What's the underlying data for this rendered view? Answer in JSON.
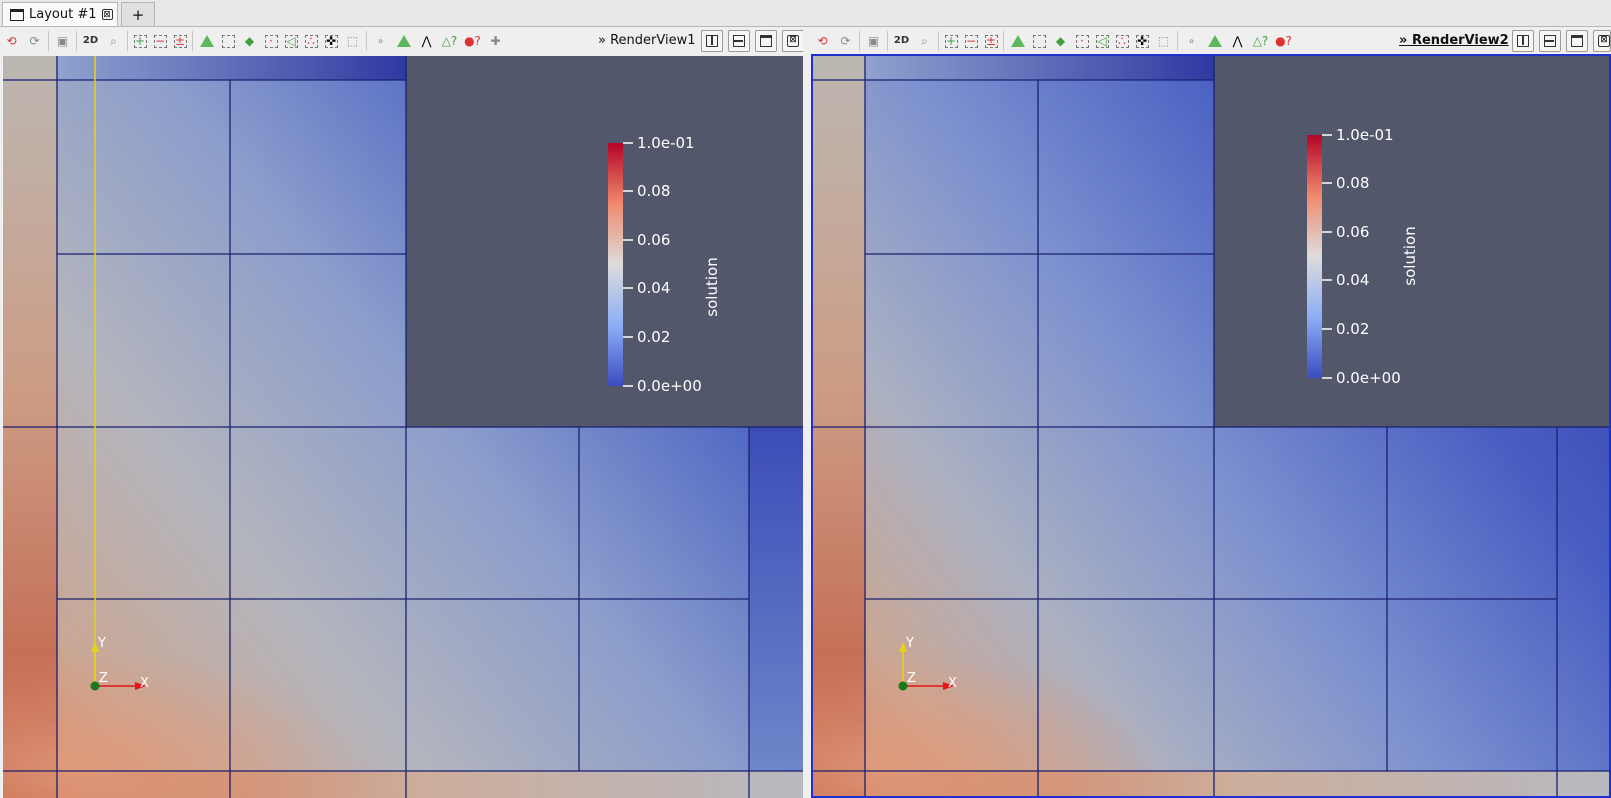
{
  "layout_tabs": {
    "active_label": "Layout #1",
    "close_glyph": "⊠",
    "add_label": "+"
  },
  "toolbar": {
    "twod_label": "2D",
    "more_glyph": "»",
    "icons": [
      "reset-camera-icon",
      "zoom-closest-icon",
      "capture-screenshot-icon",
      "toggle-2d-label",
      "zoom-to-box-icon",
      "select-cells-on-icon",
      "select-points-on-icon",
      "select-cells-frustum-icon",
      "select-points-frustum-icon",
      "select-cells-polygon-icon",
      "select-points-polygon-icon",
      "select-block-icon",
      "interactive-select-cells-icon",
      "interactive-select-points-icon",
      "hover-points-icon",
      "hover-cells-icon",
      "grow-selection-icon",
      "shrink-selection-icon",
      "clear-selection-icon",
      "edit-color-map-icon"
    ]
  },
  "views": [
    {
      "name": "RenderView1",
      "active": false
    },
    {
      "name": "RenderView2",
      "active": true
    }
  ],
  "view_buttons": {
    "close_glyph": "⊠"
  },
  "colorbar": {
    "title": "solution",
    "labels": [
      "1.0e-01",
      "0.08",
      "0.06",
      "0.04",
      "0.02",
      "0.0e+00"
    ],
    "colors": {
      "high": "#b40426",
      "mid": "#dddcdc",
      "low": "#3b4cc0"
    }
  },
  "orientation_axes": {
    "x": "X",
    "y": "Y",
    "z": "Z",
    "colors": {
      "x": "#e31515",
      "y": "#e6d21a",
      "z": "#1a7a1a"
    }
  },
  "colors": {
    "background": "#52576b",
    "edges": "#1a2070",
    "active_border": "#1f2fd0"
  }
}
